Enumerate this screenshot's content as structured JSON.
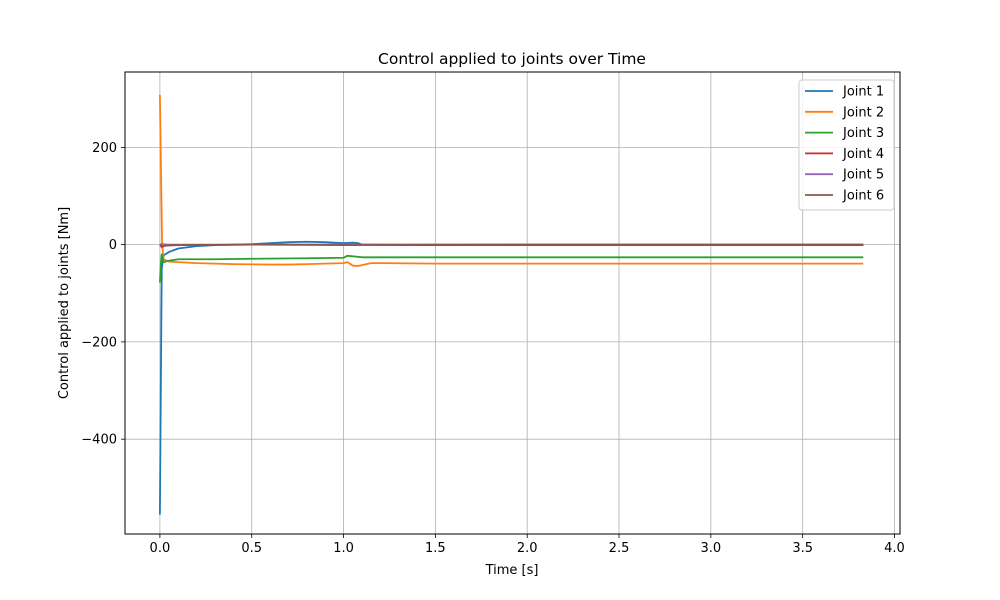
{
  "chart_data": {
    "type": "line",
    "title": "Control applied to joints over Time",
    "xlabel": "Time [s]",
    "ylabel": "Control applied to joints [Nm]",
    "xlim": [
      -0.19,
      4.03
    ],
    "ylim": [
      -595,
      355
    ],
    "xticks": [
      0.0,
      0.5,
      1.0,
      1.5,
      2.0,
      2.5,
      3.0,
      3.5,
      4.0
    ],
    "xtick_labels": [
      "0.0",
      "0.5",
      "1.0",
      "1.5",
      "2.0",
      "2.5",
      "3.0",
      "3.5",
      "4.0"
    ],
    "yticks": [
      200,
      0,
      -200,
      -400
    ],
    "ytick_labels": [
      "200",
      "0",
      "−200",
      "−400"
    ],
    "grid": true,
    "legend_position": "top-right",
    "series": [
      {
        "name": "Joint 1",
        "color": "#1f77b4",
        "points": [
          [
            0.0,
            -555
          ],
          [
            0.005,
            -300
          ],
          [
            0.01,
            -50
          ],
          [
            0.02,
            -22
          ],
          [
            0.05,
            -15
          ],
          [
            0.1,
            -8
          ],
          [
            0.2,
            -3
          ],
          [
            0.3,
            -1
          ],
          [
            0.5,
            1
          ],
          [
            0.6,
            3
          ],
          [
            0.7,
            5
          ],
          [
            0.8,
            6
          ],
          [
            0.9,
            5
          ],
          [
            1.0,
            3
          ],
          [
            1.05,
            4
          ],
          [
            1.08,
            3
          ],
          [
            1.1,
            0
          ],
          [
            1.3,
            -1
          ],
          [
            1.5,
            -1
          ],
          [
            2.0,
            -1
          ],
          [
            3.0,
            -1
          ],
          [
            3.83,
            -1
          ]
        ]
      },
      {
        "name": "Joint 2",
        "color": "#ff7f0e",
        "points": [
          [
            0.0,
            308
          ],
          [
            0.006,
            150
          ],
          [
            0.012,
            0
          ],
          [
            0.02,
            -30
          ],
          [
            0.05,
            -35
          ],
          [
            0.1,
            -36
          ],
          [
            0.2,
            -38
          ],
          [
            0.4,
            -40
          ],
          [
            0.6,
            -41
          ],
          [
            0.7,
            -41
          ],
          [
            0.8,
            -40
          ],
          [
            0.9,
            -39
          ],
          [
            1.0,
            -38
          ],
          [
            1.02,
            -36
          ],
          [
            1.05,
            -43
          ],
          [
            1.08,
            -44
          ],
          [
            1.1,
            -42
          ],
          [
            1.15,
            -38
          ],
          [
            1.2,
            -38
          ],
          [
            1.5,
            -39
          ],
          [
            2.0,
            -39
          ],
          [
            3.0,
            -39
          ],
          [
            3.83,
            -39
          ]
        ]
      },
      {
        "name": "Joint 3",
        "color": "#2ca02c",
        "points": [
          [
            0.0,
            -78
          ],
          [
            0.005,
            -40
          ],
          [
            0.01,
            -20
          ],
          [
            0.02,
            -36
          ],
          [
            0.05,
            -33
          ],
          [
            0.1,
            -30
          ],
          [
            0.3,
            -30
          ],
          [
            0.5,
            -29
          ],
          [
            0.8,
            -28
          ],
          [
            1.0,
            -27
          ],
          [
            1.02,
            -23
          ],
          [
            1.05,
            -24
          ],
          [
            1.1,
            -26
          ],
          [
            1.5,
            -26
          ],
          [
            2.0,
            -26
          ],
          [
            3.0,
            -26
          ],
          [
            3.83,
            -26
          ]
        ]
      },
      {
        "name": "Joint 4",
        "color": "#d62728",
        "points": [
          [
            0.0,
            0
          ],
          [
            0.01,
            -5
          ],
          [
            0.03,
            -2
          ],
          [
            0.1,
            -1
          ],
          [
            0.5,
            0
          ],
          [
            1.0,
            0
          ],
          [
            2.0,
            0
          ],
          [
            3.83,
            0
          ]
        ]
      },
      {
        "name": "Joint 5",
        "color": "#9467bd",
        "points": [
          [
            0.0,
            0
          ],
          [
            0.01,
            1
          ],
          [
            0.05,
            0
          ],
          [
            1.0,
            0
          ],
          [
            2.0,
            0
          ],
          [
            3.83,
            0
          ]
        ]
      },
      {
        "name": "Joint 6",
        "color": "#8c564b",
        "points": [
          [
            0.0,
            0
          ],
          [
            0.01,
            -3
          ],
          [
            0.05,
            -1
          ],
          [
            0.5,
            0
          ],
          [
            1.0,
            -1
          ],
          [
            2.0,
            0
          ],
          [
            3.83,
            0
          ]
        ]
      }
    ]
  }
}
